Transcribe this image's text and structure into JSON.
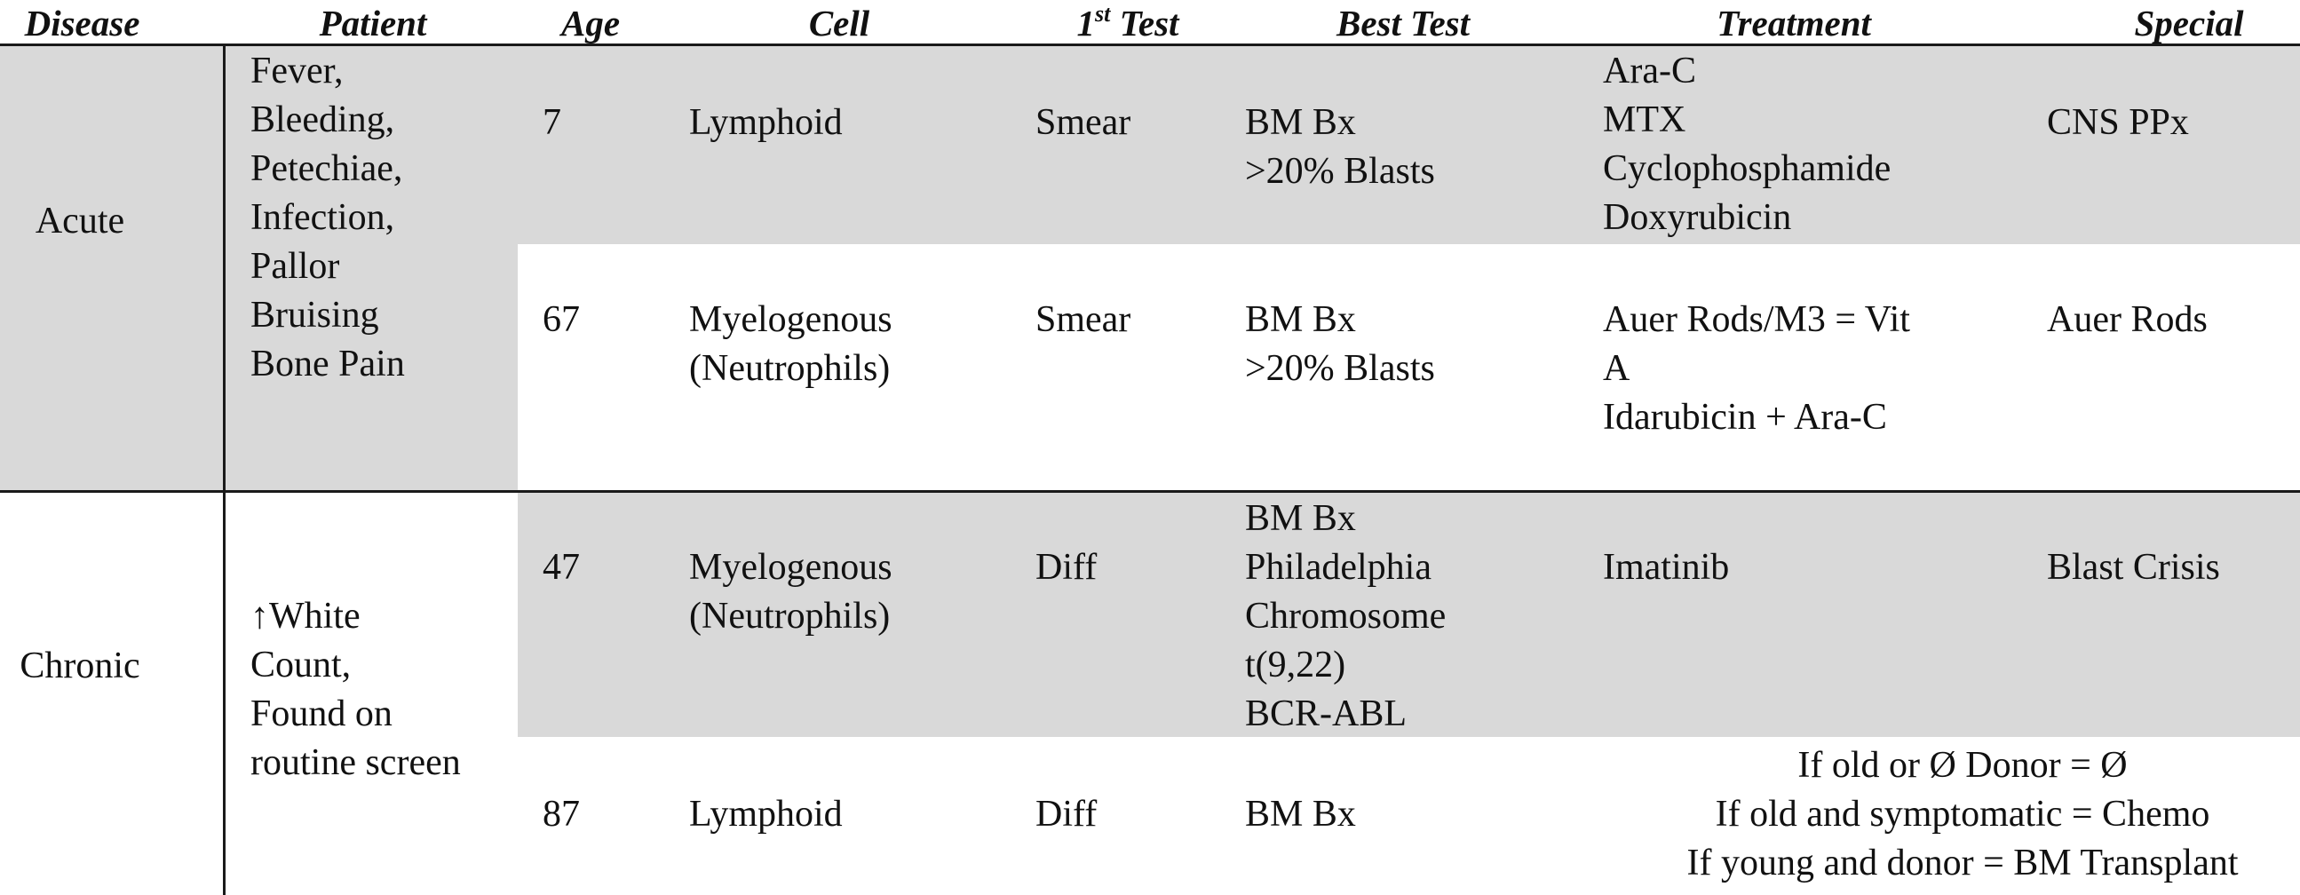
{
  "headers": {
    "disease": "Disease",
    "patient": "Patient",
    "age": "Age",
    "cell": "Cell",
    "first_test_num": "1",
    "first_test_sup": "st",
    "first_test_rest": " Test",
    "best_test": "Best Test",
    "treatment": "Treatment",
    "special": "Special"
  },
  "groups": {
    "acute": {
      "disease": "Acute",
      "patient": [
        "Fever,",
        "Bleeding,",
        "Petechiae,",
        "Infection,",
        "Pallor",
        "Bruising",
        "Bone Pain"
      ]
    },
    "chronic": {
      "disease": "Chronic",
      "patient": [
        "↑White",
        "Count,",
        "Found on",
        "routine screen"
      ]
    }
  },
  "rows": [
    {
      "age": "7",
      "cell": [
        "Lymphoid"
      ],
      "first_test": "Smear",
      "best_test": [
        "BM Bx",
        ">20% Blasts"
      ],
      "treatment": [
        "Ara-C",
        "MTX",
        "Cyclophosphamide",
        "Doxyrubicin"
      ],
      "special": "CNS PPx"
    },
    {
      "age": "67",
      "cell": [
        "Myelogenous",
        "(Neutrophils)"
      ],
      "first_test": "Smear",
      "best_test": [
        "BM Bx",
        ">20% Blasts"
      ],
      "treatment": [
        "Auer Rods/M3 = Vit",
        "A",
        "Idarubicin + Ara-C"
      ],
      "special": "Auer Rods"
    },
    {
      "age": "47",
      "cell": [
        "Myelogenous",
        "(Neutrophils)"
      ],
      "first_test": "Diff",
      "best_test": [
        "BM Bx",
        "Philadelphia",
        "Chromosome",
        "t(9,22)",
        "BCR-ABL"
      ],
      "treatment": [
        "Imatinib"
      ],
      "special": "Blast Crisis"
    },
    {
      "age": "87",
      "cell": [
        "Lymphoid"
      ],
      "first_test": "Diff",
      "best_test": [
        "BM Bx"
      ],
      "treatment_special": [
        "If old or Ø Donor = Ø",
        "If old and symptomatic = Chemo",
        "If young and donor = BM Transplant"
      ]
    }
  ]
}
